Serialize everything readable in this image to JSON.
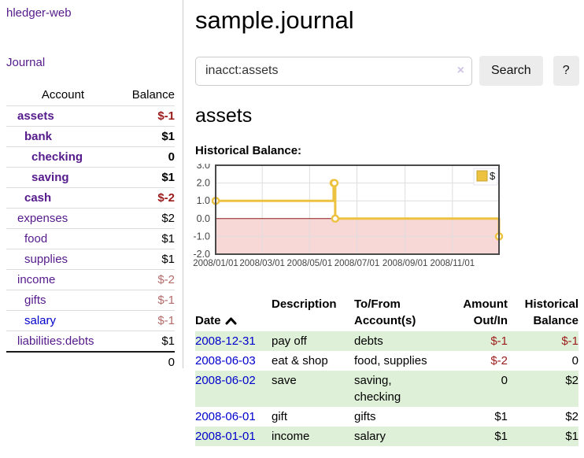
{
  "colors": {
    "link_purple": "#551a8b",
    "link_blue": "#0000cc",
    "neg_strong": "#9c1b1b",
    "neg_soft": "#b56a6a",
    "row_green": "#dff0d8",
    "chart_line": "#edc240",
    "chart_negative_fill": "#f6c9c9",
    "chart_zero_line": "#8b1a1a"
  },
  "sidebar": {
    "brand": "hledger-web",
    "journal_link": "Journal",
    "accounts_header": {
      "account": "Account",
      "balance": "Balance"
    },
    "accounts": [
      {
        "name": "assets",
        "indent": 1,
        "bold": true,
        "name_color": "purple",
        "balance": "$-1",
        "balance_color": "negstrong"
      },
      {
        "name": "bank",
        "indent": 2,
        "bold": true,
        "name_color": "purple",
        "balance": "$1",
        "balance_color": "default"
      },
      {
        "name": "checking",
        "indent": 3,
        "bold": true,
        "name_color": "purple",
        "balance": "0",
        "balance_color": "default"
      },
      {
        "name": "saving",
        "indent": 3,
        "bold": true,
        "name_color": "purple",
        "balance": "$1",
        "balance_color": "default"
      },
      {
        "name": "cash",
        "indent": 2,
        "bold": true,
        "name_color": "purple",
        "balance": "$-2",
        "balance_color": "negstrong"
      },
      {
        "name": "expenses",
        "indent": 1,
        "bold": false,
        "name_color": "purple",
        "balance": "$2",
        "balance_color": "default"
      },
      {
        "name": "food",
        "indent": 2,
        "bold": false,
        "name_color": "purple",
        "balance": "$1",
        "balance_color": "default"
      },
      {
        "name": "supplies",
        "indent": 2,
        "bold": false,
        "name_color": "purple",
        "balance": "$1",
        "balance_color": "default"
      },
      {
        "name": "income",
        "indent": 1,
        "bold": false,
        "name_color": "purple",
        "balance": "$-2",
        "balance_color": "negsoft"
      },
      {
        "name": "gifts",
        "indent": 2,
        "bold": false,
        "name_color": "purple",
        "balance": "$-1",
        "balance_color": "negsoft"
      },
      {
        "name": "salary",
        "indent": 2,
        "bold": false,
        "name_color": "blue",
        "balance": "$-1",
        "balance_color": "negsoft"
      },
      {
        "name": "liabilities:debts",
        "indent": 1,
        "bold": false,
        "name_color": "purple",
        "balance": "$1",
        "balance_color": "default"
      }
    ],
    "total": "0"
  },
  "main": {
    "title": "sample.journal",
    "search": {
      "value": "inacct:assets",
      "clear_icon": "×",
      "search_button": "Search",
      "help_button": "?"
    },
    "account_heading": "assets",
    "chart_label": "Historical Balance:"
  },
  "chart_data": {
    "type": "line",
    "step": true,
    "title": "Historical Balance:",
    "series": [
      {
        "name": "$",
        "color": "#edc240",
        "points": [
          [
            "2008-01-01",
            1
          ],
          [
            "2008-06-01",
            2
          ],
          [
            "2008-06-02",
            2
          ],
          [
            "2008-06-03",
            0
          ],
          [
            "2008-12-31",
            -1
          ]
        ]
      }
    ],
    "x_ticks": [
      "2008/01/01",
      "2008/03/01",
      "2008/05/01",
      "2008/07/01",
      "2008/09/01",
      "2008/11/01"
    ],
    "y_ticks": [
      "3.0",
      "2.0",
      "1.0",
      "0.0",
      "-1.0",
      "-2.0"
    ],
    "ylim": [
      -2,
      3
    ],
    "x_range": [
      "2008-01-01",
      "2008-12-31"
    ],
    "legend": {
      "label": "$",
      "position": "top-right"
    },
    "negative_region_shaded": true,
    "grid": true
  },
  "register": {
    "headers": [
      "Date",
      "Description",
      "To/From\nAccount(s)",
      "Amount\nOut/In",
      "Historical\nBalance"
    ],
    "sort_icon": "chevron-up",
    "rows": [
      {
        "date": "2008-12-31",
        "description": "pay off",
        "accounts": "debts",
        "amount": "$-1",
        "amount_negative": true,
        "balance": "$-1",
        "balance_negative": true,
        "shaded": true
      },
      {
        "date": "2008-06-03",
        "description": "eat & shop",
        "accounts": "food, supplies",
        "amount": "$-2",
        "amount_negative": true,
        "balance": "0",
        "balance_negative": false,
        "shaded": false
      },
      {
        "date": "2008-06-02",
        "description": "save",
        "accounts": "saving,\nchecking",
        "amount": "0",
        "amount_negative": false,
        "balance": "$2",
        "balance_negative": false,
        "shaded": true
      },
      {
        "date": "2008-06-01",
        "description": "gift",
        "accounts": "gifts",
        "amount": "$1",
        "amount_negative": false,
        "balance": "$2",
        "balance_negative": false,
        "shaded": false
      },
      {
        "date": "2008-01-01",
        "description": "income",
        "accounts": "salary",
        "amount": "$1",
        "amount_negative": false,
        "balance": "$1",
        "balance_negative": false,
        "shaded": true
      }
    ]
  }
}
